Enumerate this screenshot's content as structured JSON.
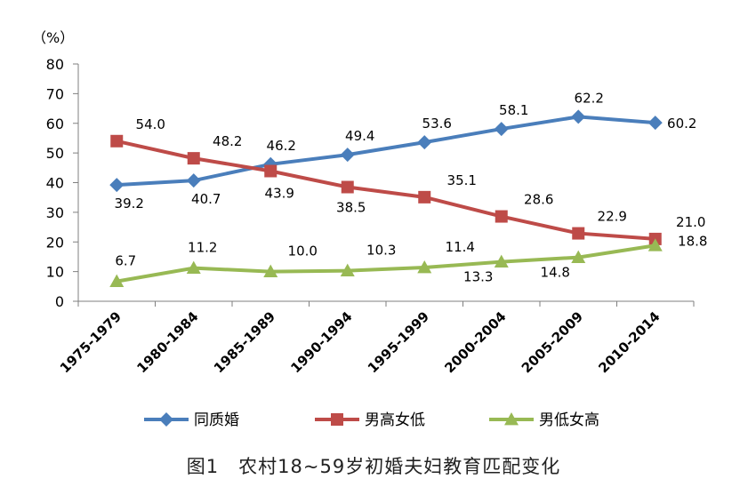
{
  "chart_data": {
    "type": "line",
    "unit_label": "（%）",
    "categories": [
      "1975-1979",
      "1980-1984",
      "1985-1989",
      "1990-1994",
      "1995-1999",
      "2000-2004",
      "2005-2009",
      "2010-2014"
    ],
    "ylim": [
      0,
      80
    ],
    "yticks": [
      0,
      10,
      20,
      30,
      40,
      50,
      60,
      70,
      80
    ],
    "grid": false,
    "legend_position": "bottom",
    "series": [
      {
        "name": "同质婚",
        "color": "#4a7ebb",
        "marker": "diamond",
        "values": [
          39.2,
          40.7,
          46.2,
          49.4,
          53.6,
          58.1,
          62.2,
          60.2
        ]
      },
      {
        "name": "男高女低",
        "color": "#be4b48",
        "marker": "square",
        "values": [
          54.0,
          48.2,
          43.9,
          38.5,
          35.1,
          28.6,
          22.9,
          21.0
        ]
      },
      {
        "name": "男低女高",
        "color": "#98b954",
        "marker": "triangle",
        "values": [
          6.7,
          11.2,
          10.0,
          10.3,
          11.4,
          13.3,
          14.8,
          18.8
        ]
      }
    ],
    "caption": "图1　农村18~59岁初婚夫妇教育匹配变化"
  }
}
